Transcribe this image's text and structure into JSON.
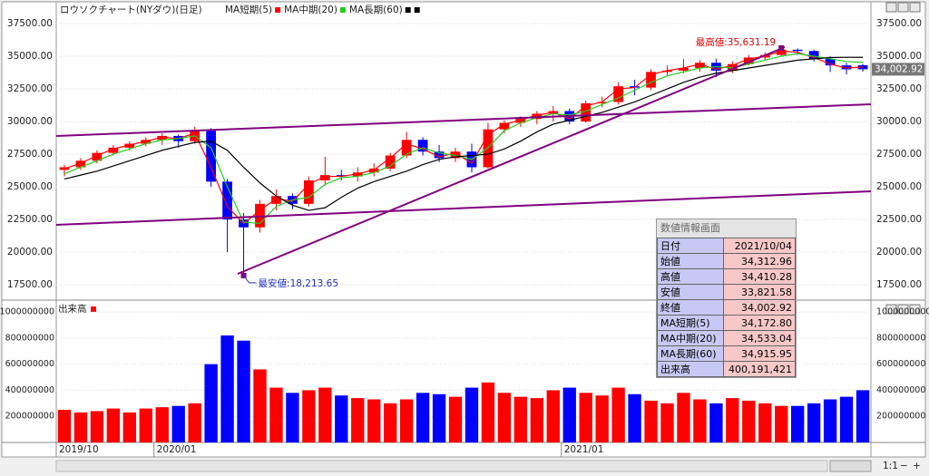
{
  "chart_data": [
    {
      "type": "candlestick",
      "title": "ロウソクチャート(NYダウ)(日足)",
      "categories": [
        "2019/10",
        null,
        null,
        null,
        null,
        null,
        "2020/01",
        null,
        null,
        null,
        null,
        null,
        null,
        null,
        null,
        null,
        null,
        null,
        null,
        null,
        null,
        null,
        null,
        null,
        null,
        null,
        null,
        null,
        null,
        null,
        null,
        "2021/01",
        null,
        null,
        null,
        null,
        null,
        null,
        null,
        null,
        null,
        null,
        null,
        null,
        null,
        null,
        null,
        null,
        null,
        null
      ],
      "open": [
        26300,
        26500,
        27000,
        27600,
        28000,
        28300,
        28600,
        28900,
        28500,
        29300,
        25400,
        22500,
        21900,
        23700,
        24300,
        23700,
        25500,
        25900,
        25800,
        26100,
        26400,
        27400,
        28600,
        27700,
        27200,
        27700,
        26500,
        29400,
        29900,
        30200,
        30600,
        30800,
        30000,
        31400,
        31500,
        32700,
        32600,
        33800,
        33900,
        34100,
        34500,
        33900,
        34400,
        34900,
        35100,
        35500,
        35400,
        34800,
        34300,
        34312.96
      ],
      "high": [
        26700,
        27200,
        27800,
        28200,
        28500,
        28800,
        29100,
        29000,
        29600,
        29500,
        25600,
        23000,
        24000,
        24800,
        24500,
        25800,
        27300,
        26300,
        26500,
        26800,
        27600,
        29200,
        28800,
        28200,
        28000,
        28300,
        29900,
        30100,
        30400,
        30800,
        31200,
        31000,
        31600,
        31900,
        33000,
        33200,
        34000,
        34300,
        34800,
        34700,
        34800,
        34600,
        35100,
        35300,
        35631.19,
        35600,
        35500,
        35000,
        34500,
        34410.28
      ],
      "low": [
        25800,
        26300,
        26800,
        27400,
        27800,
        28100,
        28200,
        28000,
        28300,
        25000,
        20000,
        18213.65,
        21500,
        23200,
        23300,
        23500,
        25100,
        25500,
        25400,
        25800,
        26200,
        27200,
        27400,
        26900,
        26900,
        26100,
        26400,
        29100,
        29600,
        29800,
        30000,
        29800,
        29900,
        31100,
        31300,
        32000,
        32400,
        33500,
        33700,
        33800,
        33400,
        33700,
        34300,
        34700,
        35000,
        35100,
        34600,
        33800,
        33600,
        33821.58
      ],
      "close": [
        26500,
        27000,
        27600,
        28000,
        28300,
        28600,
        28900,
        28500,
        29300,
        25400,
        22500,
        21900,
        23700,
        24300,
        23700,
        25500,
        25900,
        25800,
        26100,
        26400,
        27400,
        28600,
        27700,
        27200,
        27700,
        26500,
        29400,
        29900,
        30200,
        30600,
        30800,
        30000,
        31400,
        31500,
        32700,
        32600,
        33800,
        33900,
        34100,
        34500,
        33900,
        34400,
        34900,
        35100,
        35500,
        35400,
        34800,
        34300,
        34000,
        34002.92
      ],
      "series": [
        {
          "name": "MA短期(5)",
          "color": "#ff0000",
          "values": [
            26400,
            26800,
            27400,
            27900,
            28200,
            28500,
            28800,
            28700,
            29100,
            26500,
            23500,
            22200,
            23200,
            24100,
            23900,
            25200,
            25800,
            25800,
            26000,
            26300,
            27200,
            28300,
            27900,
            27300,
            27600,
            26800,
            29000,
            29800,
            30100,
            30500,
            30700,
            30200,
            31200,
            31500,
            32500,
            32600,
            33600,
            33900,
            34100,
            34400,
            34000,
            34300,
            34800,
            35000,
            35400,
            35300,
            34900,
            34400,
            34100,
            34172.8
          ]
        },
        {
          "name": "MA中期(20)",
          "color": "#22cc22",
          "values": [
            26000,
            26500,
            27000,
            27500,
            27900,
            28300,
            28600,
            28700,
            28900,
            28000,
            25000,
            22300,
            22200,
            23500,
            24000,
            24200,
            25200,
            25700,
            25800,
            26100,
            26600,
            27500,
            28000,
            27600,
            27400,
            27100,
            28000,
            29300,
            29900,
            30300,
            30600,
            30500,
            30800,
            31300,
            31800,
            32400,
            33000,
            33500,
            33800,
            34100,
            34200,
            34100,
            34400,
            34700,
            35000,
            35200,
            35000,
            34800,
            34600,
            34533.04
          ]
        },
        {
          "name": "MA長期(60)",
          "color": "#000000",
          "values": [
            25600,
            25900,
            26200,
            26600,
            27000,
            27400,
            27800,
            28100,
            28400,
            28500,
            27800,
            26500,
            25300,
            24300,
            23600,
            23200,
            23400,
            24200,
            24900,
            25400,
            25800,
            26200,
            26700,
            27100,
            27300,
            27400,
            27500,
            27900,
            28500,
            29200,
            29800,
            30100,
            30400,
            30700,
            31100,
            31500,
            32000,
            32500,
            33000,
            33400,
            33700,
            33900,
            34100,
            34300,
            34500,
            34700,
            34800,
            34900,
            34920,
            34915.95
          ]
        }
      ],
      "up_color": "#ff0000",
      "down_color": "#0000ff",
      "ylim": [
        16400,
        38750
      ],
      "yticks": [
        {
          "value": 17500,
          "label": "17500.00"
        },
        {
          "value": 20000,
          "label": "20000.00"
        },
        {
          "value": 22500,
          "label": "22500.00"
        },
        {
          "value": 25000,
          "label": "25000.00"
        },
        {
          "value": 27500,
          "label": "27500.00"
        },
        {
          "value": 30000,
          "label": "30000.00"
        },
        {
          "value": 32500,
          "label": "32500.00"
        },
        {
          "value": 35000,
          "label": "35000.00"
        },
        {
          "value": 37500,
          "label": "37500.00"
        }
      ],
      "annotations": {
        "high": "最高値:35,631.19",
        "low": "最安値:18,213.65"
      },
      "last_price": {
        "value": 34002.92,
        "label": "34,002.92"
      }
    },
    {
      "type": "bar",
      "title": "出来高",
      "color": "#ff0000",
      "values": [
        250000000,
        230000000,
        240000000,
        260000000,
        230000000,
        260000000,
        270000000,
        280000000,
        300000000,
        600000000,
        820000000,
        780000000,
        560000000,
        420000000,
        380000000,
        400000000,
        420000000,
        360000000,
        340000000,
        330000000,
        300000000,
        330000000,
        380000000,
        370000000,
        350000000,
        420000000,
        460000000,
        380000000,
        350000000,
        340000000,
        400000000,
        420000000,
        380000000,
        360000000,
        420000000,
        370000000,
        320000000,
        300000000,
        380000000,
        330000000,
        300000000,
        340000000,
        320000000,
        300000000,
        280000000,
        280000000,
        300000000,
        330000000,
        350000000,
        400191421
      ],
      "ylim": [
        0,
        1070000000
      ],
      "yticks": [
        200000000,
        400000000,
        600000000,
        800000000,
        1000000000
      ]
    }
  ],
  "info_panel": {
    "title": "数値情報画面",
    "rows": [
      [
        "日付",
        "2021/10/04"
      ],
      [
        "始値",
        "34,312.96"
      ],
      [
        "高値",
        "34,410.28"
      ],
      [
        "安値",
        "33,821.58"
      ],
      [
        "終値",
        "34,002.92"
      ],
      [
        "MA短期(5)",
        "34,172.80"
      ],
      [
        "MA中期(20)",
        "34,533.04"
      ],
      [
        "MA長期(60)",
        "34,915.95"
      ],
      [
        "出来高",
        "400,191,421"
      ]
    ]
  },
  "ui": {
    "zoom": "1:1"
  }
}
